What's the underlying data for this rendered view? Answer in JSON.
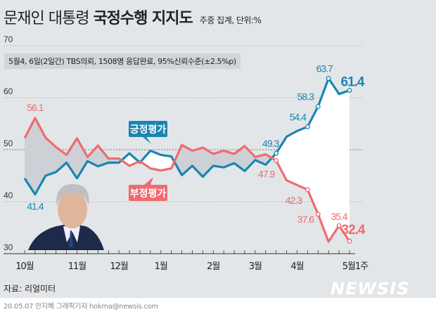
{
  "header": {
    "title_part1": "문재인 대통령",
    "title_part2": "국정수행 지지도",
    "subtitle": "주중 집계, 단위:%"
  },
  "survey_note": "5월4, 6일(2일간) TBS의뢰, 1508명 응답완료, 95%신뢰수준(±2.5%p)",
  "source": "자료: 리얼미터",
  "credit": "20.05.07 안지혜 그래픽기자 hokma@newsis.com",
  "logo_text": "NEWSIS",
  "colors": {
    "positive": "#1a86b0",
    "negative": "#ee6b6f",
    "gap_fill": "#cdd1d5",
    "background": "#e3e6e9"
  },
  "chart_data": {
    "type": "line",
    "ylim": [
      30,
      70
    ],
    "yticks": [
      "30",
      "40",
      "50",
      "60",
      "70"
    ],
    "grid": true,
    "xtick_labels": [
      {
        "index": 0,
        "label": "10월"
      },
      {
        "index": 5,
        "label": "11월"
      },
      {
        "index": 9,
        "label": "12월"
      },
      {
        "index": 13,
        "label": "1월"
      },
      {
        "index": 18,
        "label": "2월"
      },
      {
        "index": 22,
        "label": "3월"
      },
      {
        "index": 26,
        "label": "4월"
      },
      {
        "index": 31,
        "label": "5월1주"
      }
    ],
    "series": [
      {
        "name": "긍정평가",
        "color": "#1a86b0",
        "values": [
          44.5,
          41.4,
          45.0,
          45.7,
          47.5,
          44.5,
          47.8,
          46.8,
          47.5,
          47.5,
          49.3,
          47.5,
          49.8,
          49.0,
          48.7,
          45.1,
          46.9,
          44.8,
          46.9,
          46.6,
          47.4,
          45.9,
          48.0,
          47.1,
          49.3,
          52.5,
          53.6,
          54.4,
          58.3,
          63.7,
          60.7,
          61.4
        ],
        "labels": [
          {
            "index": 1,
            "text": "41.4"
          },
          {
            "index": 24,
            "text": "49.3"
          },
          {
            "index": 27,
            "text": "54.4"
          },
          {
            "index": 28,
            "text": "58.3"
          },
          {
            "index": 29,
            "text": "63.7"
          },
          {
            "index": 31,
            "text": "61.4"
          }
        ]
      },
      {
        "name": "부정평가",
        "color": "#ee6b6f",
        "values": [
          52.2,
          56.1,
          52.3,
          50.5,
          49.0,
          52.2,
          48.6,
          50.8,
          48.3,
          48.3,
          46.9,
          47.8,
          46.4,
          46.0,
          46.4,
          50.9,
          49.8,
          50.4,
          49.2,
          49.8,
          49.2,
          50.7,
          48.6,
          49.1,
          47.9,
          44.1,
          43.2,
          42.3,
          37.6,
          32.3,
          35.4,
          32.4
        ],
        "labels": [
          {
            "index": 1,
            "text": "56.1"
          },
          {
            "index": 24,
            "text": "47.9"
          },
          {
            "index": 27,
            "text": "42.3"
          },
          {
            "index": 28,
            "text": "37.6"
          },
          {
            "index": 30,
            "text": "35.4"
          },
          {
            "index": 31,
            "text": "32.4"
          }
        ]
      }
    ]
  }
}
